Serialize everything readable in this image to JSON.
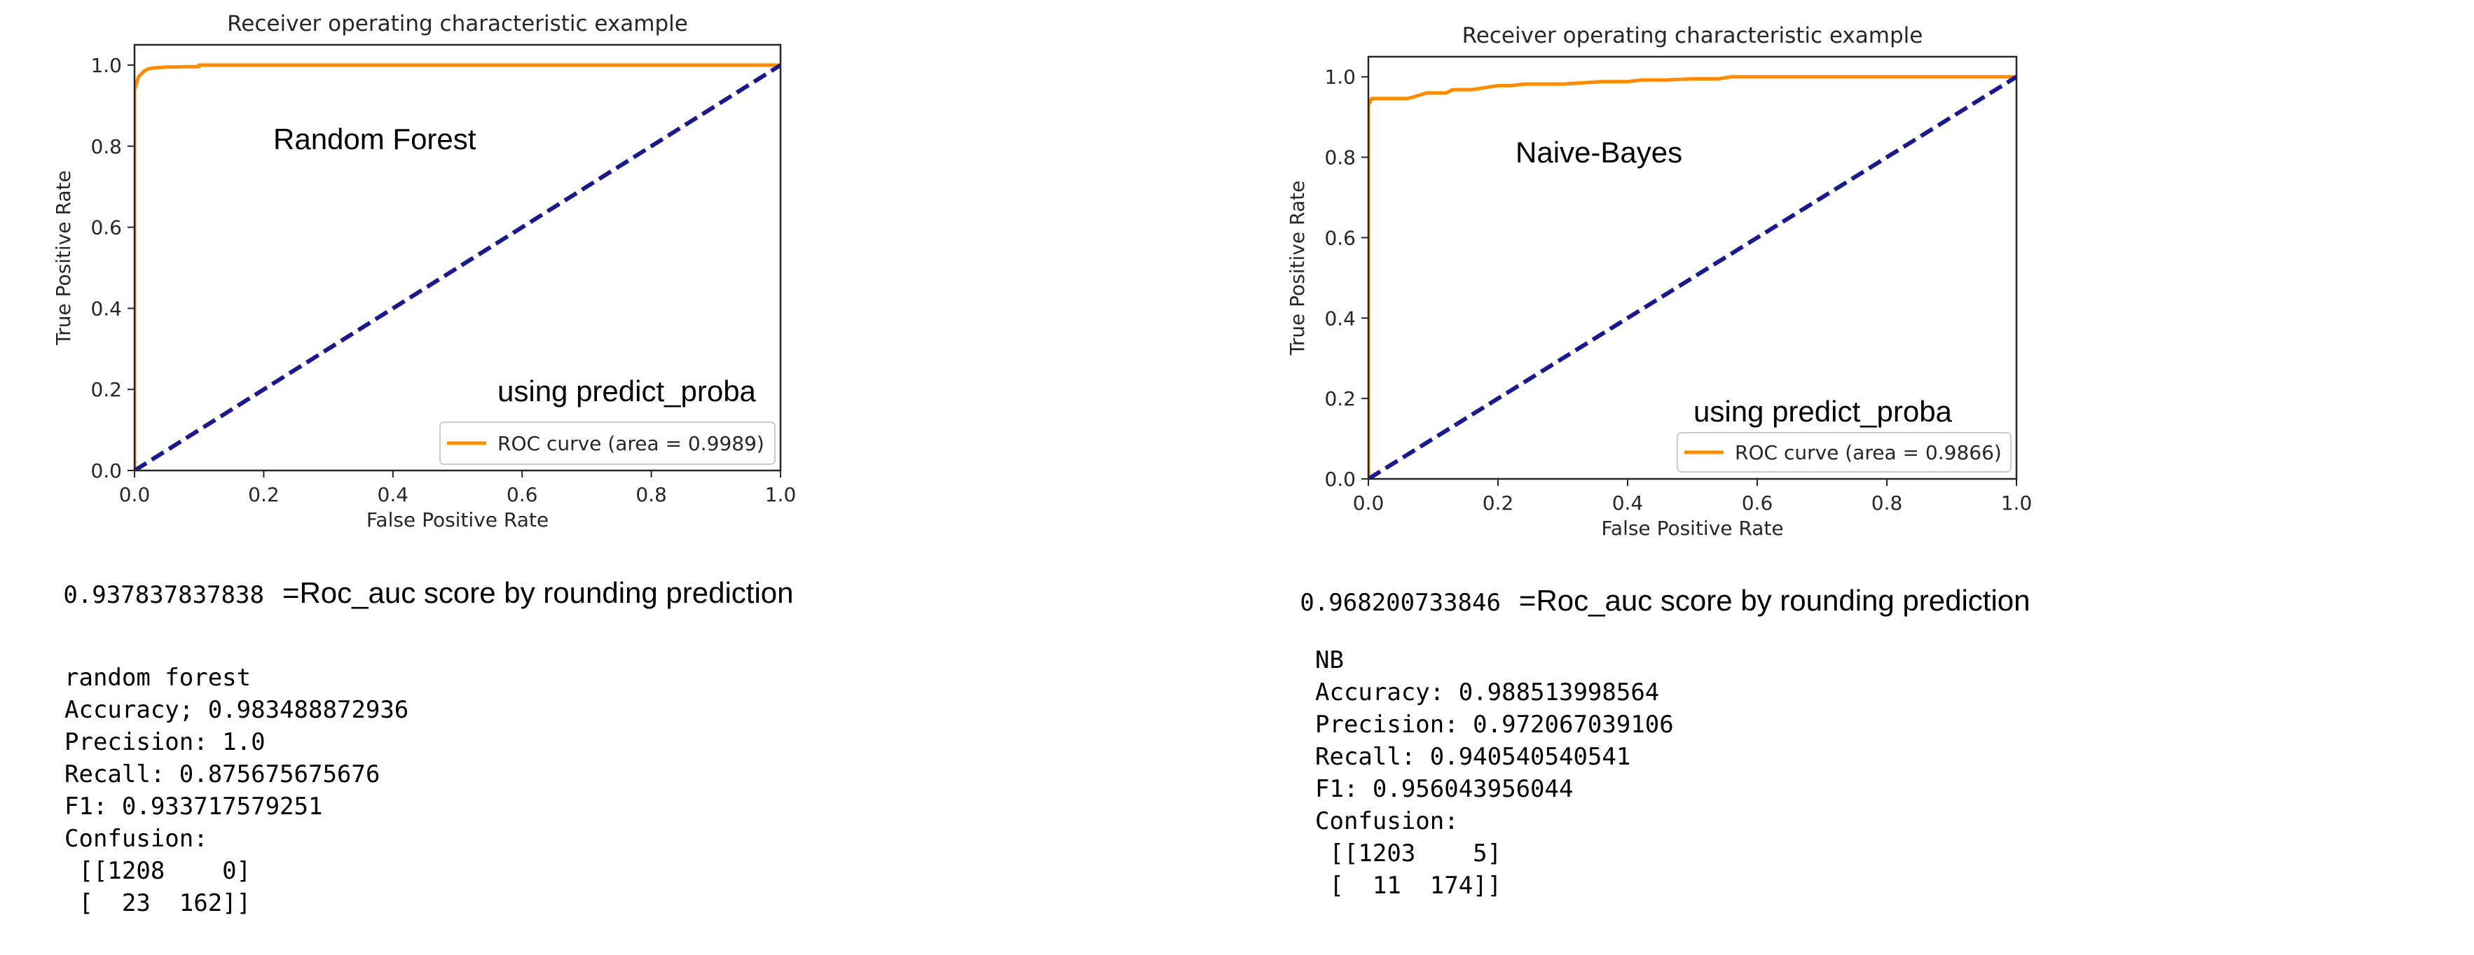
{
  "colors": {
    "roc": "#ff8c00",
    "diagonal": "#1a1a8c",
    "axis": "#262626"
  },
  "chart_data": [
    {
      "type": "line",
      "title": "Receiver operating characteristic example",
      "xlabel": "False Positive Rate",
      "ylabel": "True Positive Rate",
      "xlim": [
        0.0,
        1.0
      ],
      "ylim": [
        0.0,
        1.05
      ],
      "xticks": [
        "0.0",
        "0.2",
        "0.4",
        "0.6",
        "0.8",
        "1.0"
      ],
      "yticks": [
        "0.0",
        "0.2",
        "0.4",
        "0.6",
        "0.8",
        "1.0"
      ],
      "legend_position": "lower-right",
      "grid": false,
      "annotations": [
        "Random Forest",
        "using predict_proba"
      ],
      "series": [
        {
          "name": "ROC curve (area = 0.9989)",
          "color": "#ff8c00",
          "style": "solid",
          "x": [
            0.0,
            0.0,
            0.003,
            0.006,
            0.01,
            0.015,
            0.02,
            0.03,
            0.05,
            0.08,
            0.1,
            0.1,
            0.2,
            0.4,
            0.6,
            0.8,
            1.0
          ],
          "y": [
            0.0,
            0.94,
            0.955,
            0.97,
            0.978,
            0.985,
            0.99,
            0.993,
            0.995,
            0.996,
            0.996,
            1.0,
            1.0,
            1.0,
            1.0,
            1.0,
            1.0
          ]
        },
        {
          "color": "#1a1a8c",
          "style": "dashed",
          "x": [
            0.0,
            1.0
          ],
          "y": [
            0.0,
            1.0
          ]
        }
      ]
    },
    {
      "type": "line",
      "title": "Receiver operating characteristic example",
      "xlabel": "False Positive Rate",
      "ylabel": "True Positive Rate",
      "xlim": [
        0.0,
        1.0
      ],
      "ylim": [
        0.0,
        1.05
      ],
      "xticks": [
        "0.0",
        "0.2",
        "0.4",
        "0.6",
        "0.8",
        "1.0"
      ],
      "yticks": [
        "0.0",
        "0.2",
        "0.4",
        "0.6",
        "0.8",
        "1.0"
      ],
      "legend_position": "lower-right",
      "grid": false,
      "annotations": [
        "Naive-Bayes",
        "using predict_proba"
      ],
      "series": [
        {
          "name": "ROC curve (area = 0.9866)",
          "color": "#ff8c00",
          "style": "solid",
          "x": [
            0.0,
            0.0,
            0.005,
            0.06,
            0.07,
            0.08,
            0.09,
            0.12,
            0.13,
            0.16,
            0.18,
            0.2,
            0.22,
            0.24,
            0.3,
            0.34,
            0.36,
            0.4,
            0.42,
            0.46,
            0.5,
            0.54,
            0.56,
            0.6,
            0.8,
            1.0
          ],
          "y": [
            0.0,
            0.93,
            0.946,
            0.946,
            0.95,
            0.955,
            0.96,
            0.96,
            0.968,
            0.968,
            0.973,
            0.978,
            0.978,
            0.982,
            0.982,
            0.986,
            0.988,
            0.988,
            0.992,
            0.992,
            0.995,
            0.995,
            1.0,
            1.0,
            1.0,
            1.0
          ]
        },
        {
          "color": "#1a1a8c",
          "style": "dashed",
          "x": [
            0.0,
            1.0
          ],
          "y": [
            0.0,
            1.0
          ]
        }
      ]
    }
  ],
  "scores": [
    {
      "value": "0.937837837838",
      "text": "=Roc_auc score by rounding prediction"
    },
    {
      "value": "0.968200733846",
      "text": "=Roc_auc score by rounding prediction"
    }
  ],
  "reports": [
    {
      "lines": [
        "random forest",
        "Accuracy; 0.983488872936",
        "Precision: 1.0",
        "Recall: 0.875675675676",
        "F1: 0.933717579251",
        "Confusion:",
        " [[1208    0]",
        " [  23  162]]"
      ]
    },
    {
      "lines": [
        "NB",
        "Accuracy: 0.988513998564",
        "Precision: 0.972067039106",
        "Recall: 0.940540540541",
        "F1: 0.956043956044",
        "Confusion:",
        " [[1203    5]",
        " [  11  174]]"
      ]
    }
  ]
}
